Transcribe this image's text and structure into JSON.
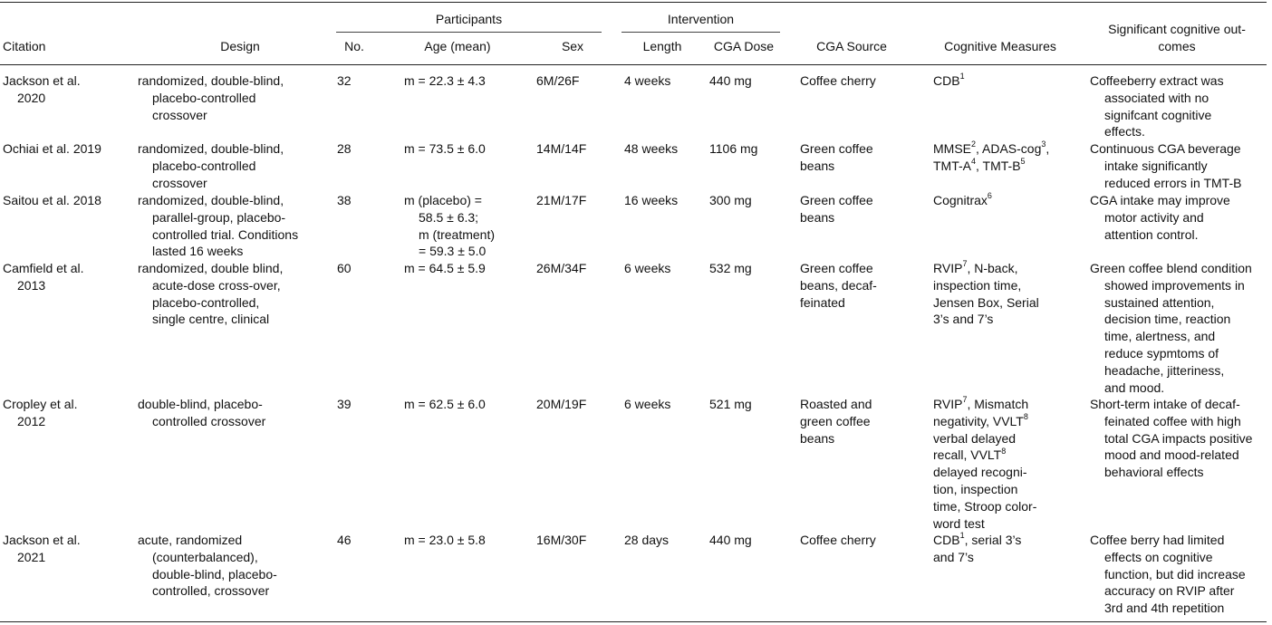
{
  "headers": {
    "group_participants": "Participants",
    "group_intervention": "Intervention",
    "citation": "Citation",
    "design": "Design",
    "no": "No.",
    "age": "Age (mean)",
    "sex": "Sex",
    "length": "Length",
    "dose": "CGA Dose",
    "source": "CGA Source",
    "measures": "Cognitive Measures",
    "outcomes_line1": "Significant cognitive out-",
    "outcomes_line2": "comes"
  },
  "rows": [
    {
      "citation": [
        "Jackson et al.",
        "2020"
      ],
      "design": [
        "randomized, double-blind,",
        "placebo-controlled",
        "crossover"
      ],
      "no": "32",
      "age": [
        "m = 22.3 ± 4.3"
      ],
      "sex": "6M/26F",
      "length": "4 weeks",
      "dose": "440 mg",
      "source": [
        "Coffee cherry"
      ],
      "measures": [
        {
          "t": "CDB",
          "s": "1"
        }
      ],
      "outcomes": [
        "Coffeeberry extract was",
        "associated with no",
        "signifcant cognitive",
        "effects."
      ]
    },
    {
      "citation": [
        "Ochiai et al. 2019"
      ],
      "design": [
        "randomized, double-blind,",
        "placebo-controlled",
        "crossover"
      ],
      "no": "28",
      "age": [
        "m = 73.5 ± 6.0"
      ],
      "sex": "14M/14F",
      "length": "48 weeks",
      "dose": "1106 mg",
      "source": [
        "Green coffee",
        "beans"
      ],
      "measures": [
        {
          "t": "MMSE",
          "s": "2",
          "t2": ", ADAS-cog",
          "s2": "3",
          "t3": ","
        },
        {
          "t": "TMT-A",
          "s": "4",
          "t2": ", TMT-B",
          "s2": "5"
        }
      ],
      "outcomes": [
        "Continuous CGA beverage",
        "intake significantly",
        "reduced errors in TMT-B"
      ]
    },
    {
      "citation": [
        "Saitou et al. 2018"
      ],
      "design": [
        "randomized, double-blind,",
        "parallel-group, placebo-",
        "controlled trial. Conditions",
        "lasted 16 weeks"
      ],
      "no": "38",
      "age": [
        "m (placebo) =",
        "58.5 ± 6.3;",
        "m (treatment)",
        "= 59.3 ± 5.0"
      ],
      "sex": "21M/17F",
      "length": "16 weeks",
      "dose": "300 mg",
      "source": [
        "Green coffee",
        "beans"
      ],
      "measures": [
        {
          "t": "Cognitrax",
          "s": "6"
        }
      ],
      "outcomes": [
        "CGA intake may improve",
        "motor activity and",
        "attention control."
      ]
    },
    {
      "citation": [
        "Camfield et al.",
        "2013"
      ],
      "design": [
        "randomized, double blind,",
        "acute-dose cross-over,",
        "placebo-controlled,",
        "single centre, clinical"
      ],
      "no": "60",
      "age": [
        "m = 64.5 ± 5.9"
      ],
      "sex": "26M/34F",
      "length": "6 weeks",
      "dose": "532 mg",
      "source": [
        "Green coffee",
        "beans, decaf-",
        "feinated"
      ],
      "measures": [
        {
          "t": "RVIP",
          "s": "7",
          "t2": ", N-back,"
        },
        {
          "t": "inspection time,"
        },
        {
          "t": "Jensen Box, Serial"
        },
        {
          "t": "3’s and 7’s"
        }
      ],
      "outcomes": [
        "Green coffee blend condition",
        "showed improvements in",
        "sustained attention,",
        "decision time, reaction",
        "time, alertness, and",
        "reduce sypmtoms of",
        "headache, jitteriness,",
        "and mood."
      ]
    },
    {
      "citation": [
        "Cropley et al.",
        "2012"
      ],
      "design": [
        "double-blind, placebo-",
        "controlled crossover"
      ],
      "no": "39",
      "age": [
        "m = 62.5 ± 6.0"
      ],
      "sex": "20M/19F",
      "length": "6 weeks",
      "dose": "521 mg",
      "source": [
        "Roasted and",
        "green coffee",
        "beans"
      ],
      "measures": [
        {
          "t": "RVIP",
          "s": "7",
          "t2": ", Mismatch"
        },
        {
          "t": "negativity, VVLT",
          "s": "8"
        },
        {
          "t": "verbal delayed"
        },
        {
          "t": "recall, VVLT",
          "s": "8"
        },
        {
          "t": "delayed recogni-"
        },
        {
          "t": "tion, inspection"
        },
        {
          "t": "time, Stroop color-"
        },
        {
          "t": "word test"
        }
      ],
      "outcomes": [
        "Short-term intake of decaf-",
        "feinated coffee with high",
        "total CGA impacts positive",
        "mood and mood-related",
        "behavioral effects"
      ]
    },
    {
      "citation": [
        "Jackson et al.",
        "2021"
      ],
      "design": [
        "acute, randomized",
        "(counterbalanced),",
        "double-blind, placebo-",
        "controlled, crossover"
      ],
      "no": "46",
      "age": [
        "m = 23.0 ± 5.8"
      ],
      "sex": "16M/30F",
      "length": "28 days",
      "dose": "440 mg",
      "source": [
        "Coffee cherry"
      ],
      "measures": [
        {
          "t": "CDB",
          "s": "1",
          "t2": ", serial 3’s"
        },
        {
          "t": "and 7’s"
        }
      ],
      "outcomes": [
        "Coffee berry had limited",
        "effects on cognitive",
        "function, but did increase",
        "accuracy on RVIP after",
        "3rd and 4th repetition"
      ]
    }
  ]
}
